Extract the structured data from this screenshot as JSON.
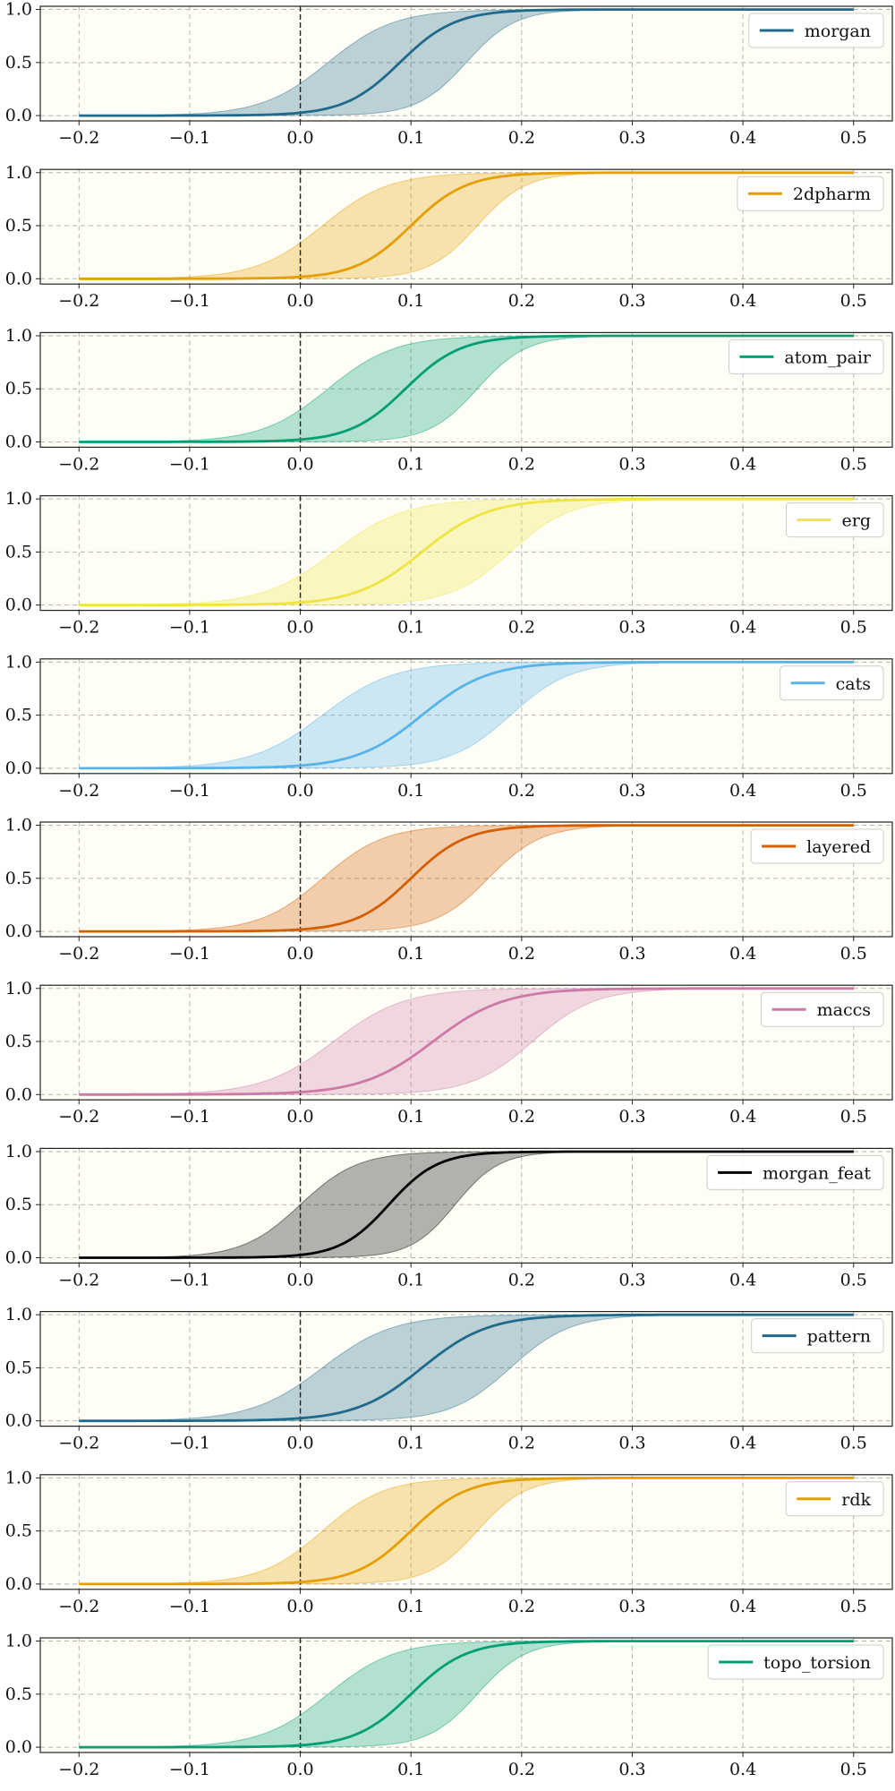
{
  "chart_data": {
    "type": "line",
    "x_ticks": [
      -0.2,
      -0.1,
      0.0,
      0.1,
      0.2,
      0.3,
      0.4,
      0.5
    ],
    "x_tick_labels": [
      "−0.2",
      "−0.1",
      "0.0",
      "0.1",
      "0.2",
      "0.3",
      "0.4",
      "0.5"
    ],
    "y_ticks": [
      0.0,
      0.5,
      1.0
    ],
    "y_tick_labels": [
      "0.0",
      "0.5",
      "1.0"
    ],
    "xlim": [
      -0.235,
      0.535
    ],
    "ylim": [
      -0.05,
      1.03
    ],
    "grid": true,
    "reference_line_x": 0.0,
    "legend_placement": "top-right",
    "background_color": "#fffef6",
    "panels": [
      {
        "name": "morgan",
        "color": "#1f6a8a",
        "center": 0.09,
        "width": 0.025,
        "lower_center": 0.15,
        "lower_width": 0.022,
        "upper_center": 0.025,
        "upper_width": 0.03
      },
      {
        "name": "2dpharm",
        "color": "#e69f00",
        "center": 0.1,
        "width": 0.025,
        "lower_center": 0.16,
        "lower_width": 0.022,
        "upper_center": 0.02,
        "upper_width": 0.03
      },
      {
        "name": "atom_pair",
        "color": "#009e73",
        "center": 0.095,
        "width": 0.025,
        "lower_center": 0.16,
        "lower_width": 0.022,
        "upper_center": 0.025,
        "upper_width": 0.03
      },
      {
        "name": "erg",
        "color": "#f0e442",
        "center": 0.11,
        "width": 0.03,
        "lower_center": 0.19,
        "lower_width": 0.027,
        "upper_center": 0.03,
        "upper_width": 0.032
      },
      {
        "name": "cats",
        "color": "#56b4e9",
        "center": 0.11,
        "width": 0.03,
        "lower_center": 0.19,
        "lower_width": 0.027,
        "upper_center": 0.02,
        "upper_width": 0.032
      },
      {
        "name": "layered",
        "color": "#d55e00",
        "center": 0.1,
        "width": 0.025,
        "lower_center": 0.17,
        "lower_width": 0.024,
        "upper_center": 0.02,
        "upper_width": 0.028
      },
      {
        "name": "maccs",
        "color": "#cc79a7",
        "center": 0.12,
        "width": 0.032,
        "lower_center": 0.21,
        "lower_width": 0.028,
        "upper_center": 0.03,
        "upper_width": 0.032
      },
      {
        "name": "morgan_feat",
        "color": "#000000",
        "center": 0.08,
        "width": 0.022,
        "lower_center": 0.14,
        "lower_width": 0.02,
        "upper_center": 0.0,
        "upper_width": 0.026
      },
      {
        "name": "pattern",
        "color": "#1f6a8a",
        "center": 0.11,
        "width": 0.03,
        "lower_center": 0.19,
        "lower_width": 0.027,
        "upper_center": 0.02,
        "upper_width": 0.032
      },
      {
        "name": "rdk",
        "color": "#e69f00",
        "center": 0.1,
        "width": 0.025,
        "lower_center": 0.16,
        "lower_width": 0.022,
        "upper_center": 0.02,
        "upper_width": 0.028
      },
      {
        "name": "topo_torsion",
        "color": "#009e73",
        "center": 0.1,
        "width": 0.025,
        "lower_center": 0.16,
        "lower_width": 0.022,
        "upper_center": 0.025,
        "upper_width": 0.03
      }
    ]
  }
}
